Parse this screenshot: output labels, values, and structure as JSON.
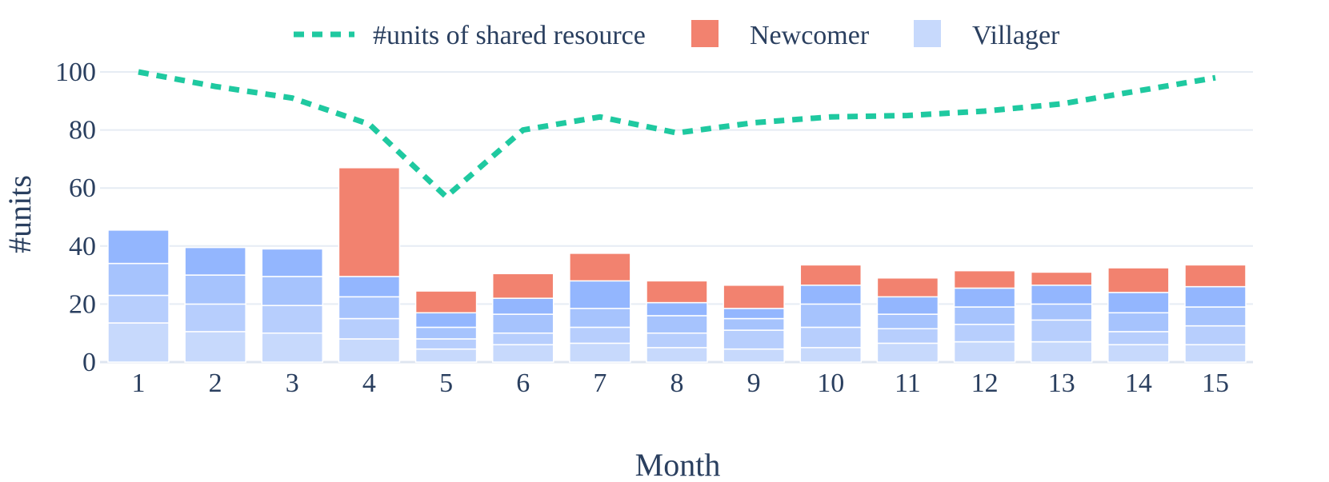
{
  "chart_data": {
    "type": "bar",
    "barmode": "stack",
    "xlabel": "Month",
    "ylabel": "#units",
    "ylim": [
      0,
      100
    ],
    "yticks": [
      0,
      20,
      40,
      60,
      80,
      100
    ],
    "grid": true,
    "legend_position": "top",
    "categories": [
      "1",
      "2",
      "3",
      "4",
      "5",
      "6",
      "7",
      "8",
      "9",
      "10",
      "11",
      "12",
      "13",
      "14",
      "15"
    ],
    "villager_segments": [
      [
        13.5,
        9.5,
        11,
        11.5
      ],
      [
        10.5,
        9.5,
        10,
        9.5
      ],
      [
        10,
        9.5,
        10,
        9.5
      ],
      [
        8,
        7,
        7.5,
        7
      ],
      [
        4.5,
        3.5,
        4,
        5
      ],
      [
        6,
        4,
        6.5,
        5.5
      ],
      [
        6.5,
        5.5,
        6.5,
        9.5
      ],
      [
        5,
        5,
        6,
        4.5
      ],
      [
        4.5,
        6.5,
        4,
        3.5
      ],
      [
        5,
        7,
        8,
        6.5
      ],
      [
        6.5,
        5,
        5,
        6
      ],
      [
        7,
        6,
        6,
        6.5
      ],
      [
        7,
        7.5,
        5.5,
        6.5
      ],
      [
        6,
        4.5,
        6.5,
        7
      ],
      [
        6,
        6.5,
        6.5,
        7
      ]
    ],
    "newcomer": [
      0,
      0,
      0,
      37.5,
      7.5,
      8.5,
      9.5,
      7.5,
      8,
      7,
      6.5,
      6,
      4.5,
      8.5,
      7.5
    ],
    "shared_resource": [
      100,
      95,
      91,
      82,
      57,
      80,
      84.5,
      79,
      82.5,
      84.5,
      85,
      86.5,
      89,
      93.5,
      98
    ],
    "series": [
      {
        "name": "#units of shared resource",
        "type": "line",
        "color": "#1fc9a0"
      },
      {
        "name": "Newcomer",
        "type": "bar",
        "color": "#f2826f"
      },
      {
        "name": "Villager",
        "type": "bar",
        "color": "#c7d9fc"
      }
    ],
    "villager_segment_colors": [
      "#c7d9fc",
      "#b7cefd",
      "#a6c3fd",
      "#93b6fe"
    ]
  }
}
